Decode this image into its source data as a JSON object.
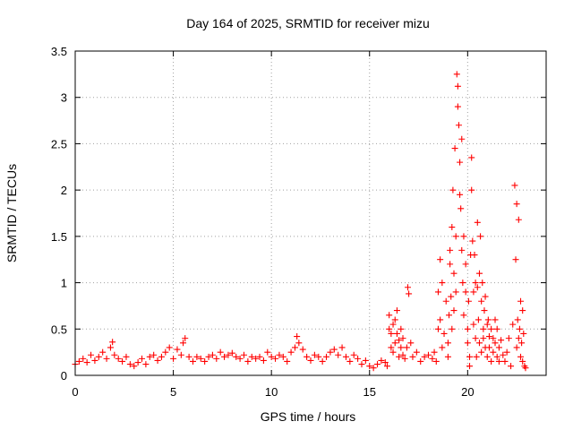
{
  "chart_data": {
    "type": "scatter",
    "title": "Day 164 of 2025, SRMTID for receiver mizu",
    "xlabel": "GPS time / hours",
    "ylabel": "SRMTID / TECUs",
    "xlim": [
      0,
      24
    ],
    "ylim": [
      0,
      3.5
    ],
    "x_ticks": [
      0,
      5,
      10,
      15,
      20
    ],
    "x_tick_labels": [
      "0",
      "5",
      "10",
      "15",
      "20"
    ],
    "y_ticks": [
      0,
      0.5,
      1,
      1.5,
      2,
      2.5,
      3,
      3.5
    ],
    "y_tick_labels": [
      "0",
      "0.5",
      "1",
      "1.5",
      "2",
      "2.5",
      "3",
      "3.5"
    ],
    "grid": true,
    "marker": "+",
    "color": "#ff0000",
    "series": [
      {
        "name": "SRMTID",
        "x": [
          0.0,
          0.2,
          0.4,
          0.6,
          0.8,
          1.0,
          1.2,
          1.4,
          1.6,
          1.8,
          1.9,
          2.0,
          2.2,
          2.4,
          2.6,
          2.8,
          3.0,
          3.2,
          3.4,
          3.6,
          3.8,
          4.0,
          4.2,
          4.4,
          4.6,
          4.8,
          5.0,
          5.2,
          5.4,
          5.5,
          5.6,
          5.8,
          6.0,
          6.2,
          6.4,
          6.6,
          6.8,
          7.0,
          7.2,
          7.4,
          7.6,
          7.8,
          8.0,
          8.2,
          8.4,
          8.6,
          8.8,
          9.0,
          9.2,
          9.4,
          9.6,
          9.8,
          10.0,
          10.2,
          10.4,
          10.6,
          10.8,
          11.0,
          11.2,
          11.3,
          11.4,
          11.6,
          11.8,
          12.0,
          12.2,
          12.4,
          12.6,
          12.8,
          13.0,
          13.2,
          13.4,
          13.6,
          13.8,
          14.0,
          14.2,
          14.4,
          14.6,
          14.8,
          15.0,
          15.2,
          15.4,
          15.6,
          15.8,
          15.9,
          16.0,
          16.0,
          16.1,
          16.1,
          16.2,
          16.2,
          16.3,
          16.3,
          16.4,
          16.4,
          16.5,
          16.5,
          16.6,
          16.6,
          16.7,
          16.7,
          16.8,
          16.9,
          16.95,
          17.0,
          17.1,
          17.2,
          17.4,
          17.6,
          17.8,
          18.0,
          18.2,
          18.3,
          18.4,
          18.5,
          18.5,
          18.6,
          18.6,
          18.7,
          18.7,
          18.8,
          18.9,
          19.0,
          19.0,
          19.05,
          19.1,
          19.1,
          19.15,
          19.2,
          19.2,
          19.25,
          19.3,
          19.3,
          19.35,
          19.4,
          19.4,
          19.45,
          19.5,
          19.5,
          19.55,
          19.6,
          19.6,
          19.65,
          19.7,
          19.7,
          19.75,
          19.8,
          19.8,
          19.9,
          19.9,
          20.0,
          20.0,
          20.05,
          20.1,
          20.1,
          20.15,
          20.2,
          20.2,
          20.25,
          20.3,
          20.3,
          20.35,
          20.4,
          20.4,
          20.45,
          20.5,
          20.5,
          20.55,
          20.6,
          20.6,
          20.65,
          20.7,
          20.7,
          20.75,
          20.8,
          20.8,
          20.85,
          20.9,
          20.9,
          21.0,
          21.0,
          21.05,
          21.1,
          21.1,
          21.2,
          21.2,
          21.3,
          21.3,
          21.4,
          21.4,
          21.5,
          21.5,
          21.6,
          21.6,
          21.7,
          21.8,
          21.9,
          22.0,
          22.1,
          22.2,
          22.3,
          22.4,
          22.45,
          22.5,
          22.5,
          22.55,
          22.6,
          22.6,
          22.65,
          22.7,
          22.7,
          22.75,
          22.8,
          22.8,
          22.85,
          22.9,
          22.95
        ],
        "y": [
          0.12,
          0.15,
          0.18,
          0.14,
          0.22,
          0.16,
          0.2,
          0.25,
          0.18,
          0.3,
          0.36,
          0.22,
          0.18,
          0.15,
          0.2,
          0.12,
          0.1,
          0.14,
          0.18,
          0.12,
          0.2,
          0.22,
          0.16,
          0.2,
          0.25,
          0.3,
          0.18,
          0.28,
          0.22,
          0.35,
          0.4,
          0.2,
          0.15,
          0.2,
          0.18,
          0.15,
          0.2,
          0.22,
          0.18,
          0.25,
          0.2,
          0.22,
          0.24,
          0.2,
          0.18,
          0.22,
          0.15,
          0.2,
          0.18,
          0.2,
          0.16,
          0.25,
          0.2,
          0.18,
          0.22,
          0.2,
          0.15,
          0.25,
          0.3,
          0.42,
          0.35,
          0.28,
          0.2,
          0.16,
          0.22,
          0.2,
          0.15,
          0.2,
          0.25,
          0.28,
          0.22,
          0.3,
          0.2,
          0.15,
          0.22,
          0.18,
          0.12,
          0.16,
          0.1,
          0.08,
          0.12,
          0.16,
          0.14,
          0.1,
          0.5,
          0.65,
          0.3,
          0.45,
          0.55,
          0.25,
          0.6,
          0.35,
          0.45,
          0.7,
          0.38,
          0.2,
          0.5,
          0.3,
          0.4,
          0.22,
          0.18,
          0.3,
          0.95,
          0.88,
          0.35,
          0.2,
          0.25,
          0.15,
          0.2,
          0.22,
          0.18,
          0.25,
          0.15,
          0.5,
          0.9,
          1.25,
          0.6,
          0.3,
          1.0,
          0.45,
          0.8,
          0.2,
          0.35,
          0.65,
          1.2,
          1.35,
          0.85,
          0.5,
          1.6,
          2.0,
          1.1,
          0.7,
          2.45,
          1.5,
          0.9,
          3.25,
          3.12,
          2.9,
          2.7,
          1.95,
          2.3,
          1.8,
          2.55,
          1.35,
          1.0,
          1.5,
          0.65,
          1.2,
          0.9,
          0.5,
          0.35,
          0.8,
          0.1,
          0.2,
          1.3,
          2.35,
          2.0,
          1.45,
          0.9,
          0.55,
          1.3,
          0.4,
          1.0,
          0.2,
          1.65,
          0.95,
          0.6,
          1.1,
          0.35,
          1.5,
          0.8,
          0.25,
          1.0,
          0.5,
          0.4,
          0.7,
          0.3,
          0.85,
          0.55,
          0.2,
          0.6,
          0.42,
          0.3,
          0.5,
          0.15,
          0.25,
          0.4,
          0.6,
          0.35,
          0.2,
          0.5,
          0.3,
          0.15,
          0.38,
          0.22,
          0.15,
          0.25,
          0.4,
          0.1,
          0.55,
          2.05,
          1.25,
          0.3,
          1.85,
          0.6,
          0.4,
          1.68,
          0.5,
          0.2,
          0.8,
          0.35,
          0.7,
          0.15,
          0.45,
          0.1,
          0.08
        ]
      }
    ]
  }
}
